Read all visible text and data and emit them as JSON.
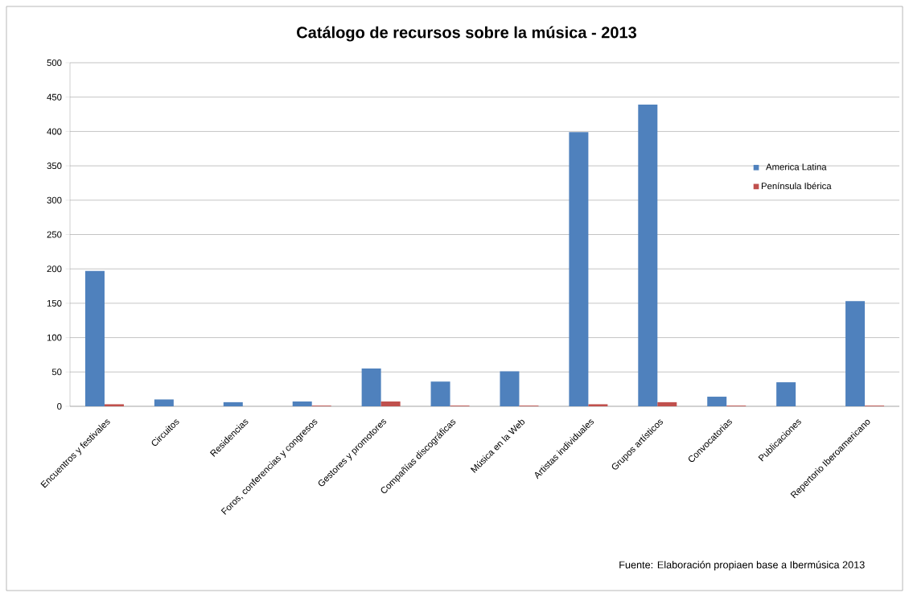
{
  "chart_data": {
    "type": "bar",
    "title": "Catálogo de recursos sobre la música - 2013",
    "categories": [
      "Encuentros y festivales",
      "Circuitos",
      "Residencias",
      "Foros, conferencias y congresos",
      "Gestores y promotores",
      "Compañías discográficas",
      "Música en la Web",
      "Artistas individuales",
      "Grupos artísticos",
      "Convocatorias",
      "Publicaciones",
      "Repertorio Iberoamericano"
    ],
    "series": [
      {
        "name": "America Latina",
        "color": "#4f81bd",
        "values": [
          197,
          10,
          6,
          7,
          55,
          36,
          51,
          399,
          439,
          14,
          35,
          153
        ]
      },
      {
        "name": "Península Ibérica",
        "color": "#c0504d",
        "values": [
          3,
          0,
          0,
          1,
          7,
          1,
          1,
          3,
          6,
          1,
          0,
          1
        ]
      }
    ],
    "ylim": [
      0,
      500
    ],
    "yticks": [
      0,
      50,
      100,
      150,
      200,
      250,
      300,
      350,
      400,
      450,
      500
    ],
    "grid": "y",
    "legend": "right",
    "annotations": [
      "Fuente: Elaboración propiaen base a Ibermúsica 2013"
    ]
  }
}
